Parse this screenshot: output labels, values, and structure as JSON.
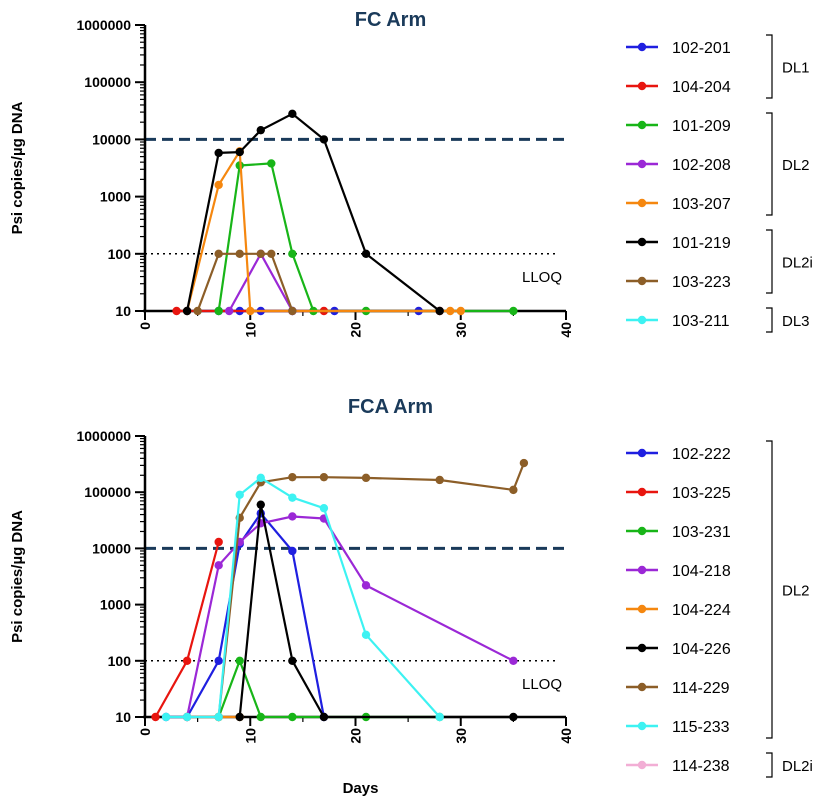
{
  "colors": {
    "c102_201": "#1f1fe0",
    "c104_204": "#e8150f",
    "c101_209": "#18b518",
    "c102_208": "#9b28d6",
    "c103_207": "#f5870f",
    "c101_219": "#000000",
    "c103_223": "#8c5e28",
    "c103_211": "#3df2f2",
    "c114_238": "#f2aed5",
    "threshold": "#1a3a5a",
    "title": "#1a3a5a"
  },
  "chart_data": [
    {
      "type": "line",
      "title": "FC Arm",
      "xlabel": "",
      "ylabel": "Psi copies/µg DNA",
      "yscale": "log",
      "xlim": [
        0,
        40
      ],
      "ylim": [
        10,
        1000000
      ],
      "xticks": [
        "0",
        "10",
        "20",
        "30",
        "40"
      ],
      "yticks": [
        "10",
        "100",
        "1000",
        "10000",
        "100000",
        "1000000"
      ],
      "threshold": 10000,
      "lloq": 100,
      "lloq_label": "LLOQ",
      "series": [
        {
          "name": "102-201",
          "color": "#1f1fe0",
          "x": [
            4,
            7,
            9,
            11,
            14,
            18,
            26
          ],
          "y": [
            10,
            10,
            10,
            10,
            10,
            10,
            10
          ]
        },
        {
          "name": "104-204",
          "color": "#e8150f",
          "x": [
            3,
            17,
            28
          ],
          "y": [
            10,
            10,
            10
          ]
        },
        {
          "name": "101-209",
          "color": "#18b518",
          "x": [
            7,
            9,
            12,
            14,
            16,
            21,
            35
          ],
          "y": [
            10,
            3500,
            3800,
            100,
            10,
            10,
            10
          ]
        },
        {
          "name": "102-208",
          "color": "#9b28d6",
          "x": [
            8,
            11,
            14
          ],
          "y": [
            10,
            100,
            10
          ]
        },
        {
          "name": "103-207",
          "color": "#f5870f",
          "x": [
            4,
            7,
            9,
            10,
            29,
            30
          ],
          "y": [
            10,
            1600,
            6200,
            10,
            10,
            10
          ]
        },
        {
          "name": "101-219",
          "color": "#000000",
          "x": [
            4,
            7,
            9,
            11,
            14,
            17,
            21,
            28
          ],
          "y": [
            10,
            5800,
            6000,
            14500,
            28000,
            10000,
            100,
            10
          ]
        },
        {
          "name": "103-223",
          "color": "#8c5e28",
          "x": [
            5,
            7,
            9,
            11,
            12,
            14
          ],
          "y": [
            10,
            100,
            100,
            100,
            100,
            10
          ]
        },
        {
          "name": "103-211",
          "color": "#3df2f2",
          "x": [],
          "y": []
        }
      ],
      "legend": {
        "entries": [
          "102-201",
          "104-204",
          "101-209",
          "102-208",
          "103-207",
          "101-219",
          "103-223",
          "103-211"
        ],
        "groups": [
          {
            "label": "DL1",
            "from": 0,
            "to": 1
          },
          {
            "label": "DL2",
            "from": 2,
            "to": 4
          },
          {
            "label": "DL2i",
            "from": 5,
            "to": 6
          },
          {
            "label": "DL3",
            "from": 7,
            "to": 7
          }
        ]
      }
    },
    {
      "type": "line",
      "title": "FCA Arm",
      "xlabel": "Days",
      "ylabel": "Psi copies/µg DNA",
      "yscale": "log",
      "xlim": [
        0,
        40
      ],
      "ylim": [
        10,
        1000000
      ],
      "xticks": [
        "0",
        "10",
        "20",
        "30",
        "40"
      ],
      "yticks": [
        "10",
        "100",
        "1000",
        "10000",
        "100000",
        "1000000"
      ],
      "threshold": 10000,
      "lloq": 100,
      "lloq_label": "LLOQ",
      "series": [
        {
          "name": "102-222",
          "color": "#1f1fe0",
          "x": [
            2,
            4,
            7,
            9,
            11,
            14,
            17
          ],
          "y": [
            10,
            10,
            100,
            12000,
            42000,
            9000,
            10
          ]
        },
        {
          "name": "103-225",
          "color": "#e8150f",
          "x": [
            1,
            4,
            7
          ],
          "y": [
            10,
            100,
            13000
          ]
        },
        {
          "name": "103-231",
          "color": "#18b518",
          "x": [
            7,
            9,
            11,
            14,
            21,
            28
          ],
          "y": [
            10,
            100,
            10,
            10,
            10,
            10
          ]
        },
        {
          "name": "104-218",
          "color": "#9b28d6",
          "x": [
            4,
            7,
            9,
            11,
            14,
            17,
            21,
            35
          ],
          "y": [
            10,
            5000,
            13000,
            28000,
            37000,
            34000,
            2200,
            100
          ]
        },
        {
          "name": "104-224",
          "color": "#f5870f",
          "x": [
            4,
            7,
            9
          ],
          "y": [
            10,
            10,
            10
          ]
        },
        {
          "name": "104-226",
          "color": "#000000",
          "x": [
            9,
            11,
            14,
            17,
            35
          ],
          "y": [
            10,
            60000,
            100,
            10,
            10
          ]
        },
        {
          "name": "114-229",
          "color": "#8c5e28",
          "x": [
            7,
            9,
            11,
            14,
            17,
            21,
            28,
            35,
            36
          ],
          "y": [
            10,
            35000,
            150000,
            185000,
            185000,
            180000,
            165000,
            110000,
            330000
          ]
        },
        {
          "name": "115-233",
          "color": "#3df2f2",
          "x": [
            2,
            4,
            7,
            9,
            11,
            14,
            17,
            21,
            28
          ],
          "y": [
            10,
            10,
            10,
            90000,
            180000,
            80000,
            52000,
            290,
            10
          ]
        },
        {
          "name": "114-238",
          "color": "#f2aed5",
          "x": [],
          "y": []
        }
      ],
      "legend": {
        "entries": [
          "102-222",
          "103-225",
          "103-231",
          "104-218",
          "104-224",
          "104-226",
          "114-229",
          "115-233",
          "114-238"
        ],
        "groups": [
          {
            "label": "DL2",
            "from": 0,
            "to": 7
          },
          {
            "label": "DL2i",
            "from": 8,
            "to": 8
          }
        ]
      }
    }
  ]
}
